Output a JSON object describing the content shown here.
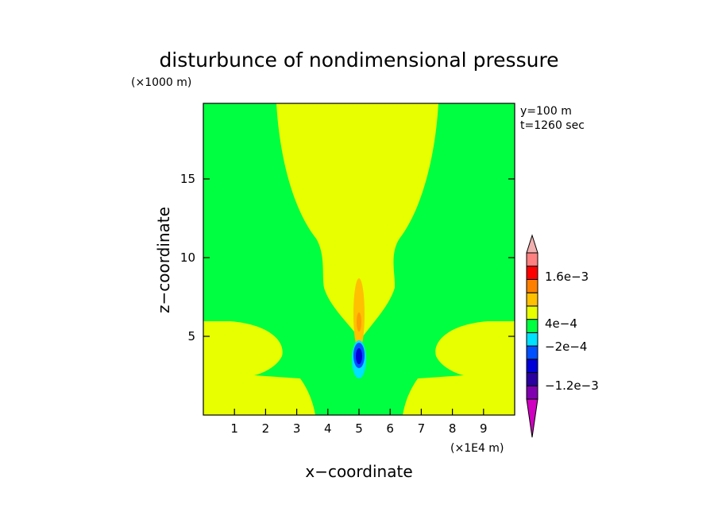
{
  "chart_data": {
    "type": "heatmap",
    "title": "disturbunce of nondimensional pressure",
    "ylabel": "z−coordinate",
    "xlabel": "x−coordinate",
    "y_unit": "(×1000 m)",
    "x_unit": "(×1E4 m)",
    "annotations": [
      "y=100 m",
      "t=1260 sec"
    ],
    "xlim": [
      0,
      10
    ],
    "ylim": [
      0,
      19.8
    ],
    "x_ticks": [
      1,
      2,
      3,
      4,
      5,
      6,
      7,
      8,
      9
    ],
    "x_tick_labels": [
      "1",
      "2",
      "3",
      "4",
      "5",
      "6",
      "7",
      "8",
      "9"
    ],
    "y_ticks": [
      5,
      10,
      15
    ],
    "y_tick_labels": [
      "5",
      "10",
      "15"
    ],
    "grid": false,
    "colorbar": {
      "position": "right",
      "levels": [
        "-1.6e-3",
        "-1.2e-3",
        "-8e-4",
        "-4e-4",
        "-2e-4",
        "0",
        "4e-4",
        "8e-4",
        "1.2e-3",
        "1.6e-3",
        "2e-3"
      ],
      "labeled_levels": [
        "1.6e-3",
        "4e-4",
        "−-2e-4",
        "−-1.2e-3"
      ],
      "label_text": [
        "1.6e−3",
        "4e−4",
        "−2e−4",
        "−1.2e−3"
      ],
      "colors": [
        "#d000c0",
        "#8000b0",
        "#2a00a0",
        "#0000d8",
        "#0050ff",
        "#00e0ff",
        "#00ff40",
        "#e8ff00",
        "#ffc000",
        "#ff8000",
        "#ff0000",
        "#ff8080",
        "#f0b0b0"
      ]
    },
    "regions": [
      {
        "name": "background",
        "range": "-2e-4 to 0",
        "color": "#00ff40"
      },
      {
        "name": "upper-plume",
        "range": "0 to 4e-4",
        "color": "#e8ff00"
      },
      {
        "name": "left-lobe",
        "range": "0 to 4e-4",
        "color": "#e8ff00"
      },
      {
        "name": "right-lobe",
        "range": "0 to 4e-4",
        "color": "#e8ff00"
      },
      {
        "name": "core-orange",
        "range": "4e-4 to 8e-4",
        "color": "#ffc000",
        "x": 5.0,
        "z": 7.0
      },
      {
        "name": "core-deep-orange",
        "range": "8e-4 to 1.2e-3",
        "color": "#ff9a00",
        "x": 5.0,
        "z": 6.3
      },
      {
        "name": "low-cyan",
        "range": "-4e-4 to -2e-4",
        "color": "#00e0ff",
        "x": 5.0,
        "z": 3.6
      },
      {
        "name": "low-blue",
        "range": "-8e-4 to -4e-4",
        "color": "#0050ff",
        "x": 5.0,
        "z": 3.8
      },
      {
        "name": "low-navy",
        "range": "-1.2e-3 to -8e-4",
        "color": "#0000d8",
        "x": 5.0,
        "z": 3.8
      }
    ]
  }
}
